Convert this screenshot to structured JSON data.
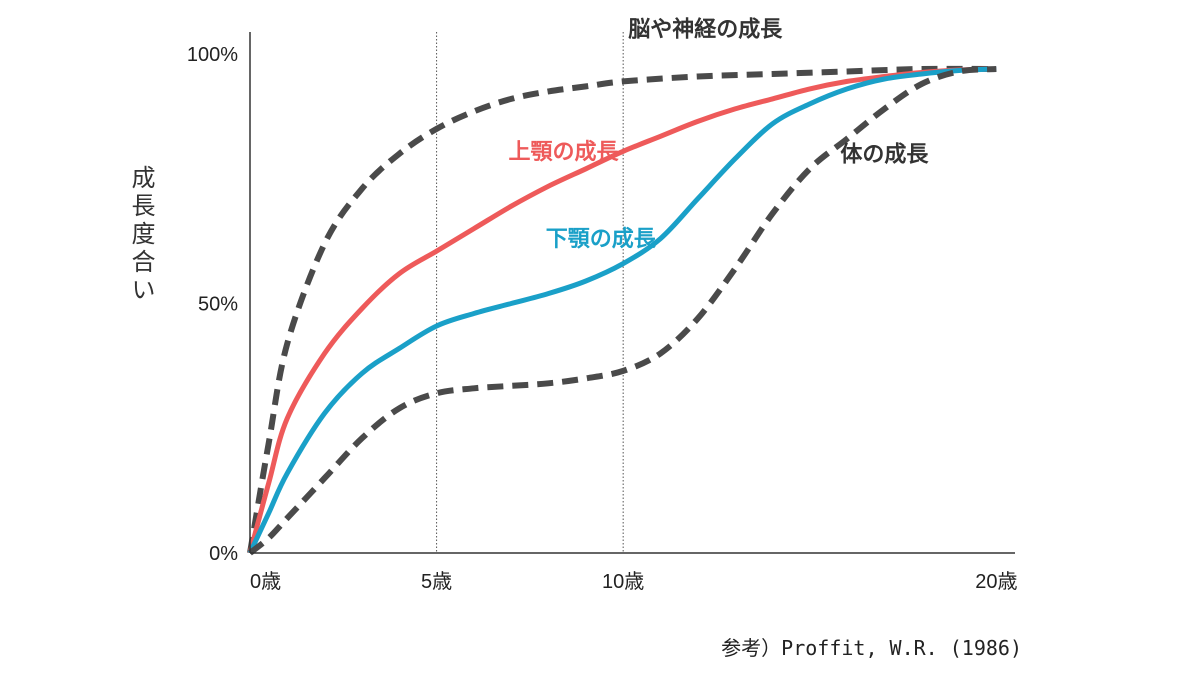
{
  "chart_data": {
    "type": "line",
    "title": "",
    "xlabel": "",
    "ylabel": "成長度合い",
    "x_ticks": [
      {
        "value": 0,
        "label": "0歳"
      },
      {
        "value": 5,
        "label": "5歳"
      },
      {
        "value": 10,
        "label": "10歳"
      },
      {
        "value": 20,
        "label": "20歳"
      }
    ],
    "y_ticks": [
      {
        "value": 0,
        "label": "0%"
      },
      {
        "value": 50,
        "label": "50%"
      },
      {
        "value": 100,
        "label": "100%"
      }
    ],
    "xlim": [
      0,
      20.5
    ],
    "ylim": [
      0,
      100
    ],
    "vertical_gridlines": [
      5,
      10
    ],
    "series": [
      {
        "name": "脳や神経の成長",
        "color": "#4a4a4a",
        "dashed": true,
        "x": [
          0,
          0.5,
          1,
          2,
          3,
          4,
          5,
          6,
          7,
          8,
          9,
          10,
          12,
          14,
          16,
          18,
          20
        ],
        "y": [
          0,
          22,
          42,
          62,
          73,
          80,
          85,
          88.5,
          91,
          92.5,
          93.5,
          94.5,
          95.5,
          96,
          96.5,
          97,
          97
        ]
      },
      {
        "name": "上顎の成長",
        "color": "#ee5a5a",
        "dashed": false,
        "x": [
          0,
          0.5,
          1,
          2,
          3,
          4,
          5,
          6,
          7,
          8,
          9,
          10,
          11,
          12,
          13,
          14,
          15,
          16,
          17,
          18,
          19,
          20
        ],
        "y": [
          0,
          14,
          27,
          40,
          49,
          56,
          60.5,
          65,
          69.5,
          73.5,
          77,
          80.5,
          83.5,
          86.5,
          89,
          91,
          93,
          94.5,
          95.5,
          96.3,
          96.8,
          97
        ]
      },
      {
        "name": "下顎の成長",
        "color": "#1aa0c8",
        "dashed": false,
        "x": [
          0,
          0.5,
          1,
          2,
          3,
          4,
          5,
          6,
          7,
          8,
          9,
          10,
          11,
          12,
          13,
          14,
          15,
          16,
          17,
          18,
          19,
          20
        ],
        "y": [
          0,
          8,
          16,
          28,
          36,
          41,
          45.5,
          48,
          50,
          52,
          54.5,
          58,
          63,
          71,
          79,
          86,
          90,
          93,
          95,
          96,
          96.7,
          97
        ]
      },
      {
        "name": "体の成長",
        "color": "#4a4a4a",
        "dashed": true,
        "x": [
          0,
          0.5,
          1,
          2,
          3,
          4,
          5,
          6,
          7,
          8,
          9,
          10,
          11,
          12,
          13,
          14,
          15,
          16,
          17,
          18,
          19,
          20
        ],
        "y": [
          0,
          3,
          7,
          15,
          23,
          29,
          32,
          33,
          33.5,
          34,
          35,
          36.5,
          40,
          47,
          57,
          68,
          77,
          83,
          89,
          94,
          96.5,
          97
        ]
      }
    ],
    "series_labels": [
      {
        "text": "脳や神経の成長",
        "color": "#333333",
        "at_x": 12.2,
        "at_y": 103.5,
        "anchor": "middle"
      },
      {
        "text": "上顎の成長",
        "color": "#ee5a5a",
        "at_x": 8.4,
        "at_y": 79,
        "anchor": "middle"
      },
      {
        "text": "下顎の成長",
        "color": "#1aa0c8",
        "at_x": 9.4,
        "at_y": 61.5,
        "anchor": "middle"
      },
      {
        "text": "体の成長",
        "color": "#333333",
        "at_x": 17.0,
        "at_y": 78.5,
        "anchor": "middle"
      }
    ],
    "source": "参考）Proffit, W.R. (1986)"
  }
}
